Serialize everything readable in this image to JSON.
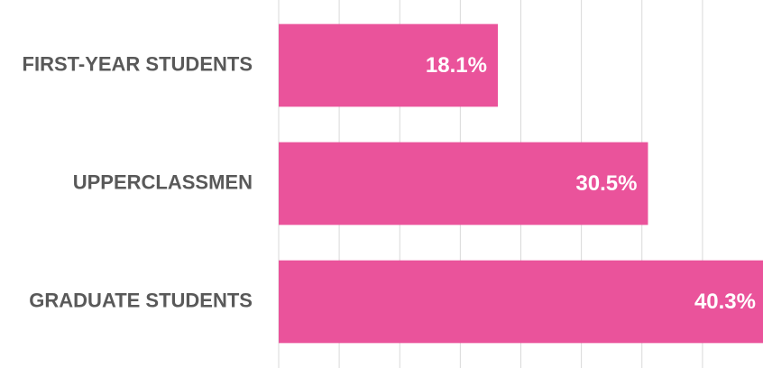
{
  "chart_data": {
    "type": "bar",
    "orientation": "horizontal",
    "categories": [
      "FIRST-YEAR STUDENTS",
      "UPPERCLASSMEN",
      "GRADUATE STUDENTS"
    ],
    "values": [
      18.1,
      30.5,
      40.3
    ],
    "value_labels": [
      "18.1%",
      "30.5%",
      "40.3%"
    ],
    "color": "#ea539b",
    "xlim": [
      0,
      40
    ],
    "xticks": [
      0,
      5,
      10,
      15,
      20,
      25,
      30,
      35
    ],
    "grid": true
  }
}
